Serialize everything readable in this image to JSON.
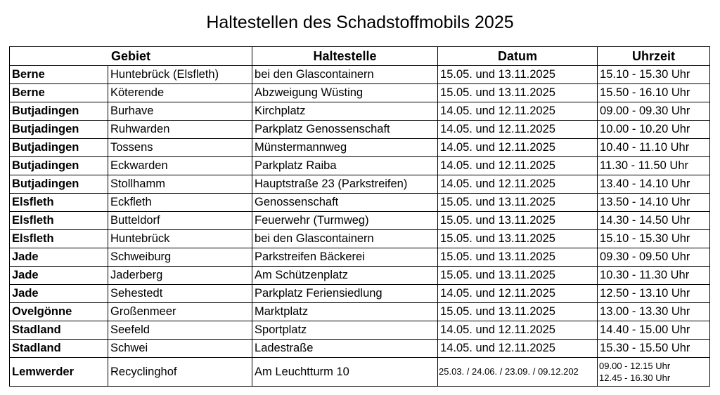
{
  "title": "Haltestellen des Schadstoffmobils 2025",
  "headers": [
    "Gebiet",
    "Haltestelle",
    "Datum",
    "Uhrzeit"
  ],
  "rows": [
    {
      "gebiet": "Berne",
      "ort": "Huntebrück (Elsfleth)",
      "haltestelle": "bei den Glascontainern",
      "datum": "15.05. und 13.11.2025",
      "uhrzeit": "15.10 - 15.30 Uhr"
    },
    {
      "gebiet": "Berne",
      "ort": "Köterende",
      "haltestelle": "Abzweigung Wüsting",
      "datum": "15.05. und 13.11.2025",
      "uhrzeit": "15.50 - 16.10 Uhr"
    },
    {
      "gebiet": "Butjadingen",
      "ort": "Burhave",
      "haltestelle": "Kirchplatz",
      "datum": "14.05. und 12.11.2025",
      "uhrzeit": "09.00 - 09.30 Uhr"
    },
    {
      "gebiet": "Butjadingen",
      "ort": "Ruhwarden",
      "haltestelle": "Parkplatz Genossenschaft",
      "datum": "14.05. und 12.11.2025",
      "uhrzeit": "10.00 - 10.20 Uhr"
    },
    {
      "gebiet": "Butjadingen",
      "ort": "Tossens",
      "haltestelle": "Münstermannweg",
      "datum": "14.05. und 12.11.2025",
      "uhrzeit": "10.40 - 11.10 Uhr"
    },
    {
      "gebiet": "Butjadingen",
      "ort": "Eckwarden",
      "haltestelle": "Parkplatz Raiba",
      "datum": "14.05. und 12.11.2025",
      "uhrzeit": "11.30 - 11.50 Uhr"
    },
    {
      "gebiet": "Butjadingen",
      "ort": "Stollhamm",
      "haltestelle": "Hauptstraße 23 (Parkstreifen)",
      "datum": "14.05. und 12.11.2025",
      "uhrzeit": "13.40 - 14.10 Uhr"
    },
    {
      "gebiet": "Elsfleth",
      "ort": "Eckfleth",
      "haltestelle": "Genossenschaft",
      "datum": "15.05. und 13.11.2025",
      "uhrzeit": "13.50 - 14.10 Uhr"
    },
    {
      "gebiet": "Elsfleth",
      "ort": "Butteldorf",
      "haltestelle": "Feuerwehr (Turmweg)",
      "datum": "15.05. und 13.11.2025",
      "uhrzeit": "14.30 - 14.50 Uhr"
    },
    {
      "gebiet": "Elsfleth",
      "ort": "Huntebrück",
      "haltestelle": "bei den Glascontainern",
      "datum": "15.05. und 13.11.2025",
      "uhrzeit": "15.10 - 15.30 Uhr"
    },
    {
      "gebiet": "Jade",
      "ort": "Schweiburg",
      "haltestelle": "Parkstreifen Bäckerei",
      "datum": "15.05. und 13.11.2025",
      "uhrzeit": "09.30 - 09.50 Uhr"
    },
    {
      "gebiet": "Jade",
      "ort": "Jaderberg",
      "haltestelle": "Am Schützenplatz",
      "datum": "15.05. und 13.11.2025",
      "uhrzeit": "10.30 - 11.30 Uhr"
    },
    {
      "gebiet": "Jade",
      "ort": "Sehestedt",
      "haltestelle": "Parkplatz Feriensiedlung",
      "datum": "14.05. und 12.11.2025",
      "uhrzeit": "12.50 - 13.10 Uhr"
    },
    {
      "gebiet": "Ovelgönne",
      "ort": "Großenmeer",
      "haltestelle": "Marktplatz",
      "datum": "15.05. und 13.11.2025",
      "uhrzeit": "13.00 - 13.30 Uhr"
    },
    {
      "gebiet": "Stadland",
      "ort": "Seefeld",
      "haltestelle": "Sportplatz",
      "datum": "14.05. und 12.11.2025",
      "uhrzeit": "14.40 - 15.00 Uhr"
    },
    {
      "gebiet": "Stadland",
      "ort": "Schwei",
      "haltestelle": "Ladestraße",
      "datum": "14.05. und 12.11.2025",
      "uhrzeit": "15.30 - 15.50 Uhr"
    }
  ],
  "last_row": {
    "gebiet": "Lemwerder",
    "ort": "Recyclinghof",
    "haltestelle": "Am Leuchtturm 10",
    "datum": "25.03. / 24.06. / 23.09. / 09.12.202",
    "uhrzeit_1": "09.00 - 12.15 Uhr",
    "uhrzeit_2": "12.45 - 16.30 Uhr"
  }
}
